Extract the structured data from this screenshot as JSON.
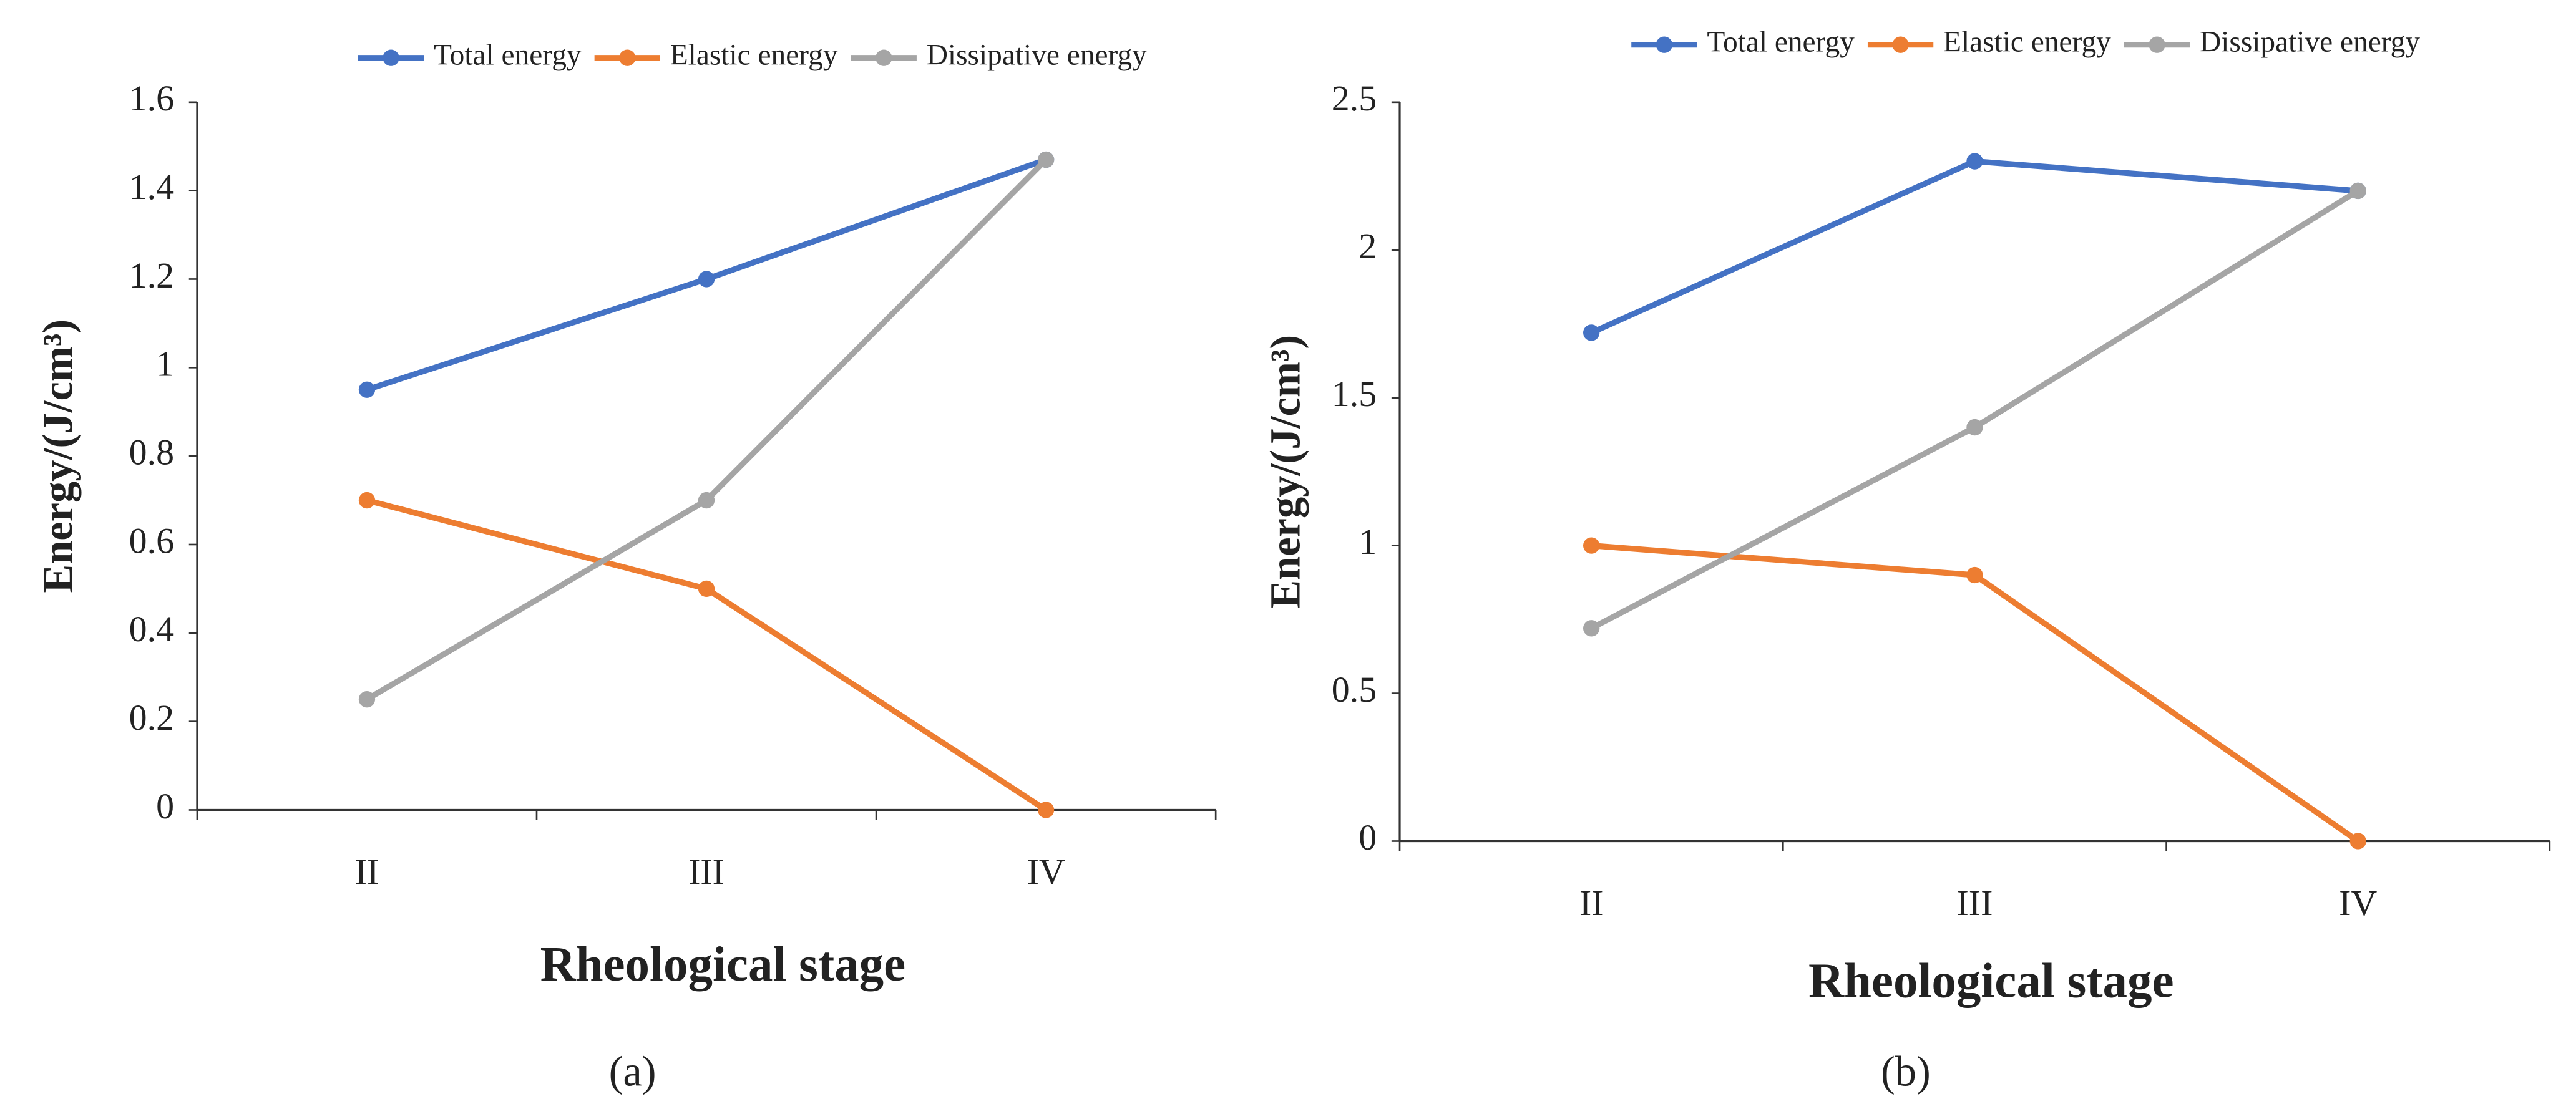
{
  "chart_data": [
    {
      "type": "line",
      "panel_label": "(a)",
      "xlabel": "Rheological stage",
      "ylabel": "Energy/(J/cm³)",
      "categories": [
        "II",
        "III",
        "IV"
      ],
      "series": [
        {
          "name": "Total energy",
          "color": "#4472c4",
          "values": [
            0.95,
            1.2,
            1.47
          ]
        },
        {
          "name": "Elastic energy",
          "color": "#ed7d31",
          "values": [
            0.7,
            0.5,
            0
          ]
        },
        {
          "name": "Dissipative energy",
          "color": "#a5a5a5",
          "values": [
            0.25,
            0.7,
            1.47
          ]
        }
      ],
      "ylim": [
        0,
        1.6
      ],
      "yticks": [
        0,
        0.2,
        0.4,
        0.6,
        0.8,
        1,
        1.2,
        1.4,
        1.6
      ],
      "grid": false,
      "legend": "top"
    },
    {
      "type": "line",
      "panel_label": "(b)",
      "xlabel": "Rheological stage",
      "ylabel": "Energy/(J/cm³)",
      "categories": [
        "II",
        "III",
        "IV"
      ],
      "series": [
        {
          "name": "Total energy",
          "color": "#4472c4",
          "values": [
            1.72,
            2.3,
            2.2
          ]
        },
        {
          "name": "Elastic energy",
          "color": "#ed7d31",
          "values": [
            1,
            0.9,
            0
          ]
        },
        {
          "name": "Dissipative energy",
          "color": "#a5a5a5",
          "values": [
            0.72,
            1.4,
            2.2
          ]
        }
      ],
      "ylim": [
        0,
        2.5
      ],
      "yticks": [
        0,
        0.5,
        1,
        1.5,
        2,
        2.5
      ],
      "grid": false,
      "legend": "top"
    }
  ]
}
